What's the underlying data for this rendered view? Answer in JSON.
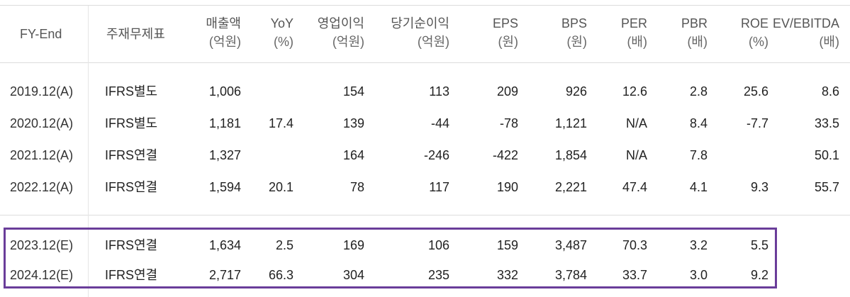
{
  "headers": [
    {
      "key": "fy",
      "label": "FY-End",
      "unit": ""
    },
    {
      "key": "ac",
      "label": "주재무제표",
      "unit": ""
    },
    {
      "key": "sales",
      "label": "매출액",
      "unit": "(억원)"
    },
    {
      "key": "yoy",
      "label": "YoY",
      "unit": "(%)"
    },
    {
      "key": "op",
      "label": "영업이익",
      "unit": "(억원)"
    },
    {
      "key": "net",
      "label": "당기순이익",
      "unit": "(억원)"
    },
    {
      "key": "eps",
      "label": "EPS",
      "unit": "(원)"
    },
    {
      "key": "bps",
      "label": "BPS",
      "unit": "(원)"
    },
    {
      "key": "per",
      "label": "PER",
      "unit": "(배)"
    },
    {
      "key": "pbr",
      "label": "PBR",
      "unit": "(배)"
    },
    {
      "key": "roe",
      "label": "ROE",
      "unit": "(%)"
    },
    {
      "key": "ev",
      "label": "EV/EBITDA",
      "unit": "(배)"
    }
  ],
  "rows": [
    {
      "fy": "2019.12(A)",
      "ac": "IFRS별도",
      "sales": "1,006",
      "yoy": "",
      "op": "154",
      "net": "113",
      "eps": "209",
      "bps": "926",
      "per": "12.6",
      "pbr": "2.8",
      "roe": "25.6",
      "ev": "8.6"
    },
    {
      "fy": "2020.12(A)",
      "ac": "IFRS별도",
      "sales": "1,181",
      "yoy": "17.4",
      "op": "139",
      "net": "-44",
      "eps": "-78",
      "bps": "1,121",
      "per": "N/A",
      "pbr": "8.4",
      "roe": "-7.7",
      "ev": "33.5"
    },
    {
      "fy": "2021.12(A)",
      "ac": "IFRS연결",
      "sales": "1,327",
      "yoy": "",
      "op": "164",
      "net": "-246",
      "eps": "-422",
      "bps": "1,854",
      "per": "N/A",
      "pbr": "7.8",
      "roe": "",
      "ev": "50.1"
    },
    {
      "fy": "2022.12(A)",
      "ac": "IFRS연결",
      "sales": "1,594",
      "yoy": "20.1",
      "op": "78",
      "net": "117",
      "eps": "190",
      "bps": "2,221",
      "per": "47.4",
      "pbr": "4.1",
      "roe": "9.3",
      "ev": "55.7"
    },
    {
      "fy": "2023.12(E)",
      "ac": "IFRS연결",
      "sales": "1,634",
      "yoy": "2.5",
      "op": "169",
      "net": "106",
      "eps": "159",
      "bps": "3,487",
      "per": "70.3",
      "pbr": "3.2",
      "roe": "5.5",
      "ev": ""
    },
    {
      "fy": "2024.12(E)",
      "ac": "IFRS연결",
      "sales": "2,717",
      "yoy": "66.3",
      "op": "304",
      "net": "235",
      "eps": "332",
      "bps": "3,784",
      "per": "33.7",
      "pbr": "3.0",
      "roe": "9.2",
      "ev": ""
    }
  ],
  "colors": {
    "highlight_border": "#6a3d9a",
    "grid": "#dcdcdc"
  }
}
